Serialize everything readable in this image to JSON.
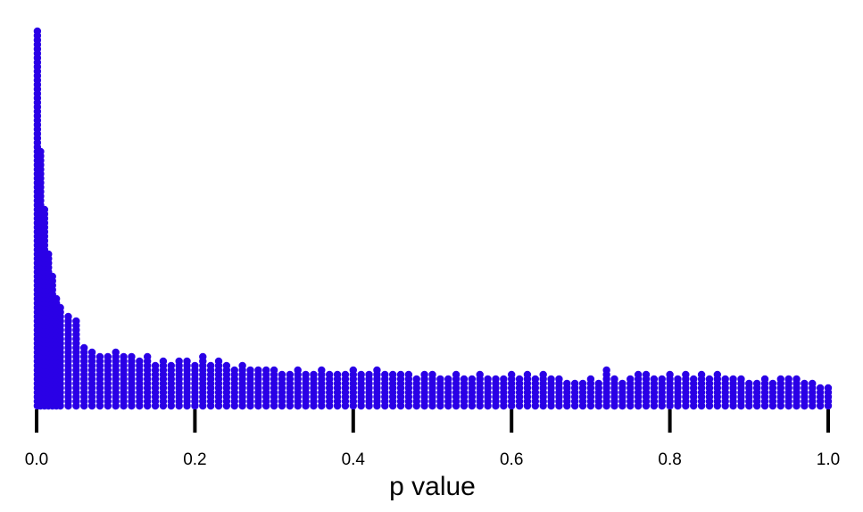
{
  "chart_data": {
    "type": "histogram",
    "style": "stacked-dot",
    "xlabel": "p value",
    "ylabel": "",
    "xlim": [
      0.0,
      1.0
    ],
    "x_ticks": [
      "0.0",
      "0.2",
      "0.4",
      "0.6",
      "0.8",
      "1.0"
    ],
    "x_tick_values": [
      0.0,
      0.2,
      0.4,
      0.6,
      0.8,
      1.0
    ],
    "y_axis_shown": false,
    "grid": false,
    "legend": "none",
    "point_color": "#2a00e6",
    "series": [
      {
        "bin_centers": [
          0.001,
          0.005,
          0.01,
          0.015,
          0.02,
          0.025,
          0.03,
          0.04,
          0.05,
          0.06,
          0.07,
          0.08,
          0.09,
          0.1,
          0.11,
          0.12,
          0.13,
          0.14,
          0.15,
          0.16,
          0.17,
          0.18,
          0.19,
          0.2,
          0.21,
          0.22,
          0.23,
          0.24,
          0.25,
          0.26,
          0.27,
          0.28,
          0.29,
          0.3,
          0.31,
          0.32,
          0.33,
          0.34,
          0.35,
          0.36,
          0.37,
          0.38,
          0.39,
          0.4,
          0.41,
          0.42,
          0.43,
          0.44,
          0.45,
          0.46,
          0.47,
          0.48,
          0.49,
          0.5,
          0.51,
          0.52,
          0.53,
          0.54,
          0.55,
          0.56,
          0.57,
          0.58,
          0.59,
          0.6,
          0.61,
          0.62,
          0.63,
          0.64,
          0.65,
          0.66,
          0.67,
          0.68,
          0.69,
          0.7,
          0.71,
          0.72,
          0.73,
          0.74,
          0.75,
          0.76,
          0.77,
          0.78,
          0.79,
          0.8,
          0.81,
          0.82,
          0.83,
          0.84,
          0.85,
          0.86,
          0.87,
          0.88,
          0.89,
          0.9,
          0.91,
          0.92,
          0.93,
          0.94,
          0.95,
          0.96,
          0.97,
          0.98,
          0.99,
          1.0
        ],
        "counts": [
          85,
          58,
          45,
          35,
          30,
          25,
          23,
          21,
          20,
          14,
          13,
          12,
          12,
          13,
          12,
          12,
          11,
          12,
          10,
          11,
          10,
          11,
          11,
          10,
          12,
          10,
          11,
          10,
          9,
          10,
          9,
          9,
          9,
          9,
          8,
          8,
          9,
          8,
          8,
          9,
          8,
          8,
          8,
          9,
          8,
          8,
          9,
          8,
          8,
          8,
          8,
          7,
          8,
          8,
          7,
          7,
          8,
          7,
          7,
          8,
          7,
          7,
          7,
          8,
          7,
          8,
          7,
          8,
          7,
          7,
          6,
          6,
          6,
          7,
          6,
          9,
          7,
          6,
          7,
          8,
          8,
          7,
          7,
          8,
          7,
          8,
          7,
          8,
          7,
          8,
          7,
          7,
          7,
          6,
          6,
          7,
          6,
          7,
          7,
          7,
          6,
          6,
          5,
          5
        ]
      }
    ]
  }
}
